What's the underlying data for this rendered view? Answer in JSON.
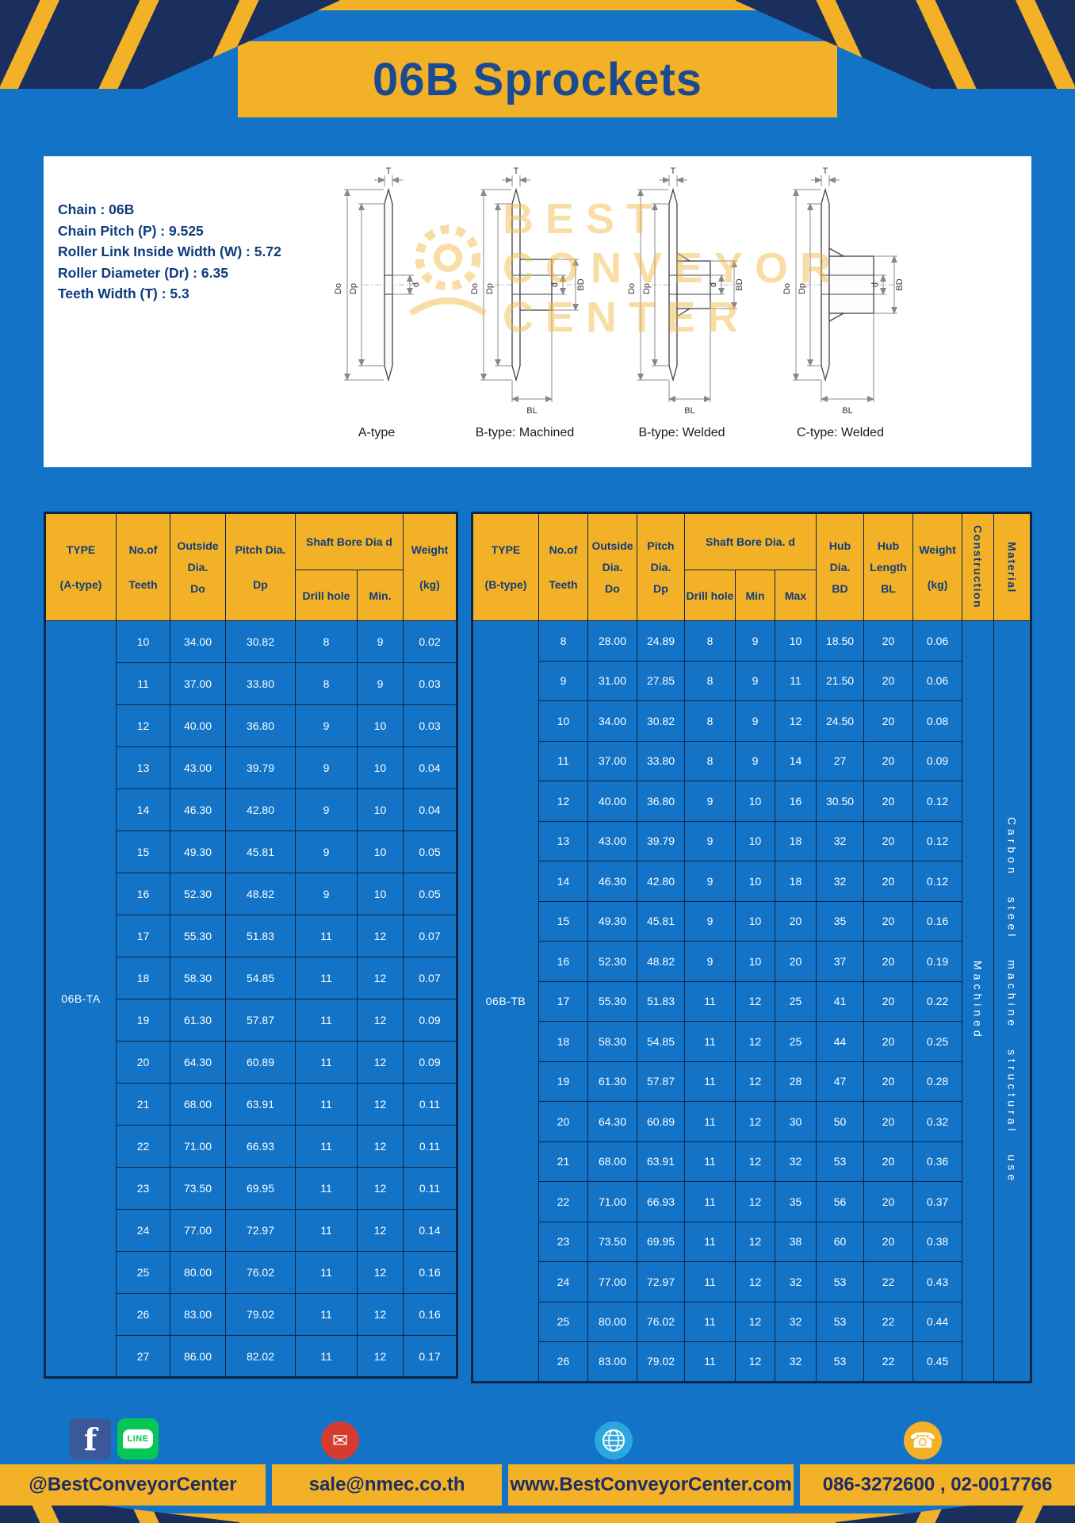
{
  "page": {
    "title": "06B Sprockets"
  },
  "colors": {
    "page_blue": "#1273c7",
    "accent_yellow": "#f2b127",
    "navy_text": "#123d7a"
  },
  "specs": {
    "lines": [
      "Chain : 06B",
      "Chain Pitch (P) : 9.525",
      "Roller Link Inside Width (W) : 5.72",
      "Roller Diameter (Dr) : 6.35",
      "Teeth Width (T) : 5.3"
    ]
  },
  "watermark": [
    "BEST",
    "CONVEYOR",
    "CENTER"
  ],
  "diagrams": {
    "labels": [
      "A-type",
      "B-type: Machined",
      "B-type: Welded",
      "C-type: Welded"
    ],
    "dims": {
      "t": "T",
      "do": "Do",
      "dp": "Dp",
      "d": "d",
      "bd": "BD",
      "bl": "BL"
    }
  },
  "table_a": {
    "header": {
      "type": [
        "TYPE",
        "(A-type)"
      ],
      "teeth": [
        "No.of",
        "Teeth"
      ],
      "outside": [
        "Outside",
        "Dia.",
        "Do"
      ],
      "pitch": [
        "Pitch Dia.",
        "Dp"
      ],
      "shaft_group": "Shaft Bore Dia d",
      "drill": "Drill hole",
      "min": "Min.",
      "weight": [
        "Weight",
        "(kg)"
      ]
    },
    "type_value": "06B-TA",
    "rows": [
      [
        "10",
        "34.00",
        "30.82",
        "8",
        "9",
        "0.02"
      ],
      [
        "11",
        "37.00",
        "33.80",
        "8",
        "9",
        "0.03"
      ],
      [
        "12",
        "40.00",
        "36.80",
        "9",
        "10",
        "0.03"
      ],
      [
        "13",
        "43.00",
        "39.79",
        "9",
        "10",
        "0.04"
      ],
      [
        "14",
        "46.30",
        "42.80",
        "9",
        "10",
        "0.04"
      ],
      [
        "15",
        "49.30",
        "45.81",
        "9",
        "10",
        "0.05"
      ],
      [
        "16",
        "52.30",
        "48.82",
        "9",
        "10",
        "0.05"
      ],
      [
        "17",
        "55.30",
        "51.83",
        "11",
        "12",
        "0.07"
      ],
      [
        "18",
        "58.30",
        "54.85",
        "11",
        "12",
        "0.07"
      ],
      [
        "19",
        "61.30",
        "57.87",
        "11",
        "12",
        "0.09"
      ],
      [
        "20",
        "64.30",
        "60.89",
        "11",
        "12",
        "0.09"
      ],
      [
        "21",
        "68.00",
        "63.91",
        "11",
        "12",
        "0.11"
      ],
      [
        "22",
        "71.00",
        "66.93",
        "11",
        "12",
        "0.11"
      ],
      [
        "23",
        "73.50",
        "69.95",
        "11",
        "12",
        "0.11"
      ],
      [
        "24",
        "77.00",
        "72.97",
        "11",
        "12",
        "0.14"
      ],
      [
        "25",
        "80.00",
        "76.02",
        "11",
        "12",
        "0.16"
      ],
      [
        "26",
        "83.00",
        "79.02",
        "11",
        "12",
        "0.16"
      ],
      [
        "27",
        "86.00",
        "82.02",
        "11",
        "12",
        "0.17"
      ]
    ]
  },
  "table_b": {
    "header": {
      "type": [
        "TYPE",
        "(B-type)"
      ],
      "teeth": [
        "No.of",
        "Teeth"
      ],
      "outside": [
        "Outside",
        "Dia.",
        "Do"
      ],
      "pitch": [
        "Pitch",
        "Dia.",
        "Dp"
      ],
      "shaft_group": "Shaft Bore Dia. d",
      "drill": "Drill hole",
      "min": "Min",
      "max": "Max",
      "hub_dia": [
        "Hub",
        "Dia.",
        "BD"
      ],
      "hub_len": [
        "Hub",
        "Length",
        "BL"
      ],
      "weight": [
        "Weight",
        "(kg)"
      ],
      "construction": "Construction",
      "material": "Material"
    },
    "type_value": "06B-TB",
    "construction_value": "Machined",
    "material_value": "Carbon steel machine structural use",
    "rows": [
      [
        "8",
        "28.00",
        "24.89",
        "8",
        "9",
        "10",
        "18.50",
        "20",
        "0.06"
      ],
      [
        "9",
        "31.00",
        "27.85",
        "8",
        "9",
        "11",
        "21.50",
        "20",
        "0.06"
      ],
      [
        "10",
        "34.00",
        "30.82",
        "8",
        "9",
        "12",
        "24.50",
        "20",
        "0.08"
      ],
      [
        "11",
        "37.00",
        "33.80",
        "8",
        "9",
        "14",
        "27",
        "20",
        "0.09"
      ],
      [
        "12",
        "40.00",
        "36.80",
        "9",
        "10",
        "16",
        "30.50",
        "20",
        "0.12"
      ],
      [
        "13",
        "43.00",
        "39.79",
        "9",
        "10",
        "18",
        "32",
        "20",
        "0.12"
      ],
      [
        "14",
        "46.30",
        "42.80",
        "9",
        "10",
        "18",
        "32",
        "20",
        "0.12"
      ],
      [
        "15",
        "49.30",
        "45.81",
        "9",
        "10",
        "20",
        "35",
        "20",
        "0.16"
      ],
      [
        "16",
        "52.30",
        "48.82",
        "9",
        "10",
        "20",
        "37",
        "20",
        "0.19"
      ],
      [
        "17",
        "55.30",
        "51.83",
        "11",
        "12",
        "25",
        "41",
        "20",
        "0.22"
      ],
      [
        "18",
        "58.30",
        "54.85",
        "11",
        "12",
        "25",
        "44",
        "20",
        "0.25"
      ],
      [
        "19",
        "61.30",
        "57.87",
        "11",
        "12",
        "28",
        "47",
        "20",
        "0.28"
      ],
      [
        "20",
        "64.30",
        "60.89",
        "11",
        "12",
        "30",
        "50",
        "20",
        "0.32"
      ],
      [
        "21",
        "68.00",
        "63.91",
        "11",
        "12",
        "32",
        "53",
        "20",
        "0.36"
      ],
      [
        "22",
        "71.00",
        "66.93",
        "11",
        "12",
        "35",
        "56",
        "20",
        "0.37"
      ],
      [
        "23",
        "73.50",
        "69.95",
        "11",
        "12",
        "38",
        "60",
        "20",
        "0.38"
      ],
      [
        "24",
        "77.00",
        "72.97",
        "11",
        "12",
        "32",
        "53",
        "22",
        "0.43"
      ],
      [
        "25",
        "80.00",
        "76.02",
        "11",
        "12",
        "32",
        "53",
        "22",
        "0.44"
      ],
      [
        "26",
        "83.00",
        "79.02",
        "11",
        "12",
        "32",
        "53",
        "22",
        "0.45"
      ]
    ]
  },
  "footer": {
    "social": "@BestConveyorCenter",
    "email": "sale@nmec.co.th",
    "website": "www.BestConveyorCenter.com",
    "phone": "086-3272600 , 02-0017766"
  }
}
